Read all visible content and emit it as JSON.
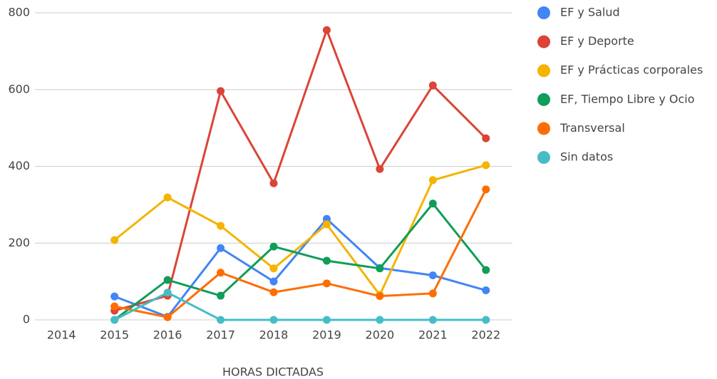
{
  "chart_data": {
    "type": "line",
    "x_label": "HORAS DICTADAS",
    "categories": [
      "2014",
      "2015",
      "2016",
      "2017",
      "2018",
      "2019",
      "2020",
      "2021",
      "2022"
    ],
    "series": [
      {
        "name": "EF y Salud",
        "color": "#4285f4",
        "values": [
          null,
          61,
          8,
          187,
          100,
          263,
          135,
          116,
          77
        ]
      },
      {
        "name": "EF y Deporte",
        "color": "#db4437",
        "values": [
          null,
          24,
          63,
          596,
          356,
          755,
          393,
          611,
          473
        ]
      },
      {
        "name": "EF y Prácticas corporales",
        "color": "#f4b400",
        "values": [
          null,
          208,
          319,
          245,
          134,
          249,
          65,
          364,
          403
        ]
      },
      {
        "name": "EF, Tiempo Libre y Ocio",
        "color": "#0f9d58",
        "values": [
          null,
          0,
          104,
          63,
          191,
          154,
          134,
          303,
          130
        ]
      },
      {
        "name": "Transversal",
        "color": "#ff6d01",
        "values": [
          null,
          35,
          7,
          123,
          72,
          95,
          62,
          69,
          340
        ]
      },
      {
        "name": "Sin datos",
        "color": "#46bdc6",
        "values": [
          null,
          0,
          71,
          0,
          0,
          0,
          0,
          0,
          0
        ]
      }
    ],
    "ylim": [
      0,
      800
    ],
    "yticks": [
      0,
      200,
      400,
      600,
      800
    ],
    "grid": true,
    "legend": "right"
  }
}
